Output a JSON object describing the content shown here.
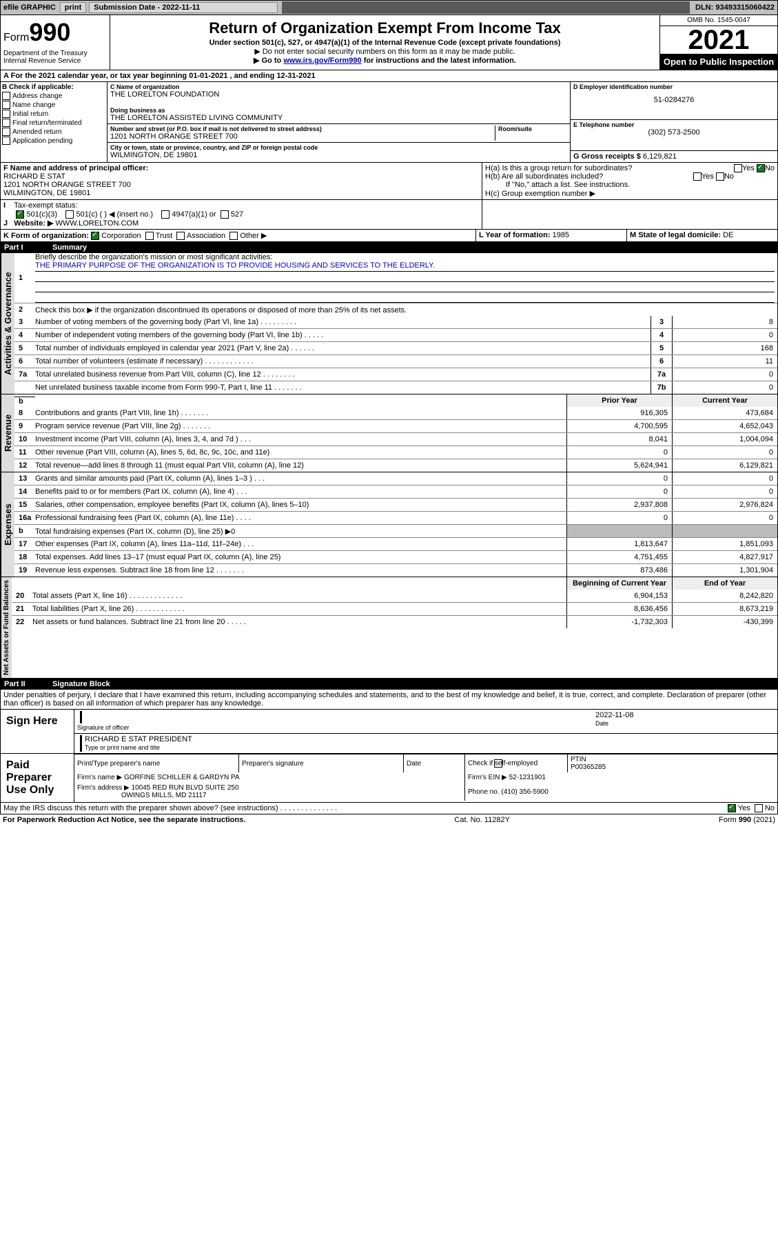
{
  "topbar": {
    "efile": "efile GRAPHIC",
    "print": "print",
    "sub_label": "Submission Date - 2022-11-11",
    "dln": "DLN: 93493315060422"
  },
  "header": {
    "form_prefix": "Form",
    "form_num": "990",
    "title": "Return of Organization Exempt From Income Tax",
    "subtitle": "Under section 501(c), 527, or 4947(a)(1) of the Internal Revenue Code (except private foundations)",
    "note1": "▶ Do not enter social security numbers on this form as it may be made public.",
    "note2_pre": "▶ Go to ",
    "note2_link": "www.irs.gov/Form990",
    "note2_post": " for instructions and the latest information.",
    "dept": "Department of the Treasury\nInternal Revenue Service",
    "omb": "OMB No. 1545-0047",
    "year": "2021",
    "open_public": "Open to Public Inspection"
  },
  "line_a": "For the 2021 calendar year, or tax year beginning 01-01-2021     , and ending 12-31-2021",
  "section_b": {
    "label": "B Check if applicable:",
    "items": [
      "Address change",
      "Name change",
      "Initial return",
      "Final return/terminated",
      "Amended return",
      "Application pending"
    ]
  },
  "section_c": {
    "name_label": "C Name of organization",
    "name": "THE LORELTON FOUNDATION",
    "dba_label": "Doing business as",
    "dba": "THE LORELTON ASSISTED LIVING COMMUNITY",
    "street_label": "Number and street (or P.O. box if mail is not delivered to street address)",
    "room_label": "Room/suite",
    "street": "1201 NORTH ORANGE STREET 700",
    "city_label": "City or town, state or province, country, and ZIP or foreign postal code",
    "city": "WILMINGTON, DE   19801"
  },
  "section_d": {
    "label": "D Employer identification number",
    "val": "51-0284276"
  },
  "section_e": {
    "label": "E Telephone number",
    "val": "(302) 573-2500"
  },
  "section_g": {
    "label": "G Gross receipts $",
    "val": "6,129,821"
  },
  "section_f": {
    "label": "F  Name and address of principal officer:",
    "name": "RICHARD E STAT",
    "addr1": "1201 NORTH ORANGE STREET 700",
    "addr2": "WILMINGTON, DE   19801"
  },
  "section_h": {
    "ha": "H(a)  Is this a group return for subordinates?",
    "hb": "H(b)  Are all subordinates included?",
    "hb_note": "If \"No,\" attach a list. See instructions.",
    "hc": "H(c)  Group exemption number ▶",
    "yes": "Yes",
    "no": "No"
  },
  "line_i": {
    "label": "Tax-exempt status:",
    "opts": [
      "501(c)(3)",
      "501(c) (   ) ◀ (insert no.)",
      "4947(a)(1) or",
      "527"
    ]
  },
  "line_j": {
    "label": "Website: ▶",
    "val": "WWW.LORELTON.COM"
  },
  "line_k": {
    "label": "K Form of organization:",
    "opts": [
      "Corporation",
      "Trust",
      "Association",
      "Other ▶"
    ]
  },
  "line_l": {
    "label": "L Year of formation:",
    "val": "1985"
  },
  "line_m": {
    "label": "M State of legal domicile:",
    "val": "DE"
  },
  "part1": {
    "label": "Part I",
    "title": "Summary"
  },
  "summary": {
    "q1": "Briefly describe the organization's mission or most significant activities:",
    "q1_val": "THE PRIMARY PURPOSE OF THE ORGANIZATION IS TO PROVIDE HOUSING AND SERVICES TO THE ELDERLY.",
    "q2": "Check this box ▶       if the organization discontinued its operations or disposed of more than 25% of its net assets.",
    "lines_gov": [
      {
        "n": "3",
        "t": "Number of voting members of the governing body (Part VI, line 1a)   .    .    .    .    .    .    .    .    .",
        "box": "3",
        "v": "8"
      },
      {
        "n": "4",
        "t": "Number of independent voting members of the governing body (Part VI, line 1b)   .    .    .    .    .",
        "box": "4",
        "v": "0"
      },
      {
        "n": "5",
        "t": "Total number of individuals employed in calendar year 2021 (Part V, line 2a)   .    .    .    .    .    .",
        "box": "5",
        "v": "168"
      },
      {
        "n": "6",
        "t": "Total number of volunteers (estimate if necessary)   .    .    .    .    .    .    .    .    .    .    .    .",
        "box": "6",
        "v": "11"
      },
      {
        "n": "7a",
        "t": "Total unrelated business revenue from Part VIII, column (C), line 12   .    .    .    .    .    .    .    .",
        "box": "7a",
        "v": "0"
      },
      {
        "n": "",
        "t": "Net unrelated business taxable income from Form 990-T, Part I, line 11   .    .    .    .    .    .    .",
        "box": "7b",
        "v": "0"
      }
    ],
    "prior_hdr": "Prior Year",
    "curr_hdr": "Current Year",
    "beg_hdr": "Beginning of Current Year",
    "end_hdr": "End of Year",
    "lines_rev": [
      {
        "n": "8",
        "t": "Contributions and grants (Part VIII, line 1h)   .    .    .    .    .    .    .",
        "p": "916,305",
        "c": "473,684"
      },
      {
        "n": "9",
        "t": "Program service revenue (Part VIII, line 2g)   .    .    .    .    .    .    .",
        "p": "4,700,595",
        "c": "4,652,043"
      },
      {
        "n": "10",
        "t": "Investment income (Part VIII, column (A), lines 3, 4, and 7d )   .    .    .",
        "p": "8,041",
        "c": "1,004,094"
      },
      {
        "n": "11",
        "t": "Other revenue (Part VIII, column (A), lines 5, 6d, 8c, 9c, 10c, and 11e)",
        "p": "0",
        "c": "0"
      },
      {
        "n": "12",
        "t": "Total revenue—add lines 8 through 11 (must equal Part VIII, column (A), line 12)",
        "p": "5,624,941",
        "c": "6,129,821"
      }
    ],
    "lines_exp": [
      {
        "n": "13",
        "t": "Grants and similar amounts paid (Part IX, column (A), lines 1–3 )   .    .    .",
        "p": "0",
        "c": "0"
      },
      {
        "n": "14",
        "t": "Benefits paid to or for members (Part IX, column (A), line 4)   .    .    .",
        "p": "0",
        "c": "0"
      },
      {
        "n": "15",
        "t": "Salaries, other compensation, employee benefits (Part IX, column (A), lines 5–10)",
        "p": "2,937,808",
        "c": "2,976,824"
      },
      {
        "n": "16a",
        "t": "Professional fundraising fees (Part IX, column (A), line 11e)   .    .    .    .",
        "p": "0",
        "c": "0"
      },
      {
        "n": "b",
        "t": "Total fundraising expenses (Part IX, column (D), line 25) ▶0",
        "p": "",
        "c": "",
        "shade": true
      },
      {
        "n": "17",
        "t": "Other expenses (Part IX, column (A), lines 11a–11d, 11f–24e)   .    .    .",
        "p": "1,813,647",
        "c": "1,851,093"
      },
      {
        "n": "18",
        "t": "Total expenses. Add lines 13–17 (must equal Part IX, column (A), line 25)",
        "p": "4,751,455",
        "c": "4,827,917"
      },
      {
        "n": "19",
        "t": "Revenue less expenses. Subtract line 18 from line 12   .    .    .    .    .    .    .",
        "p": "873,486",
        "c": "1,301,904"
      }
    ],
    "lines_net": [
      {
        "n": "20",
        "t": "Total assets (Part X, line 16)   .    .    .    .    .    .    .    .    .    .    .    .    .",
        "p": "6,904,153",
        "c": "8,242,820"
      },
      {
        "n": "21",
        "t": "Total liabilities (Part X, line 26)   .    .    .    .    .    .    .    .    .    .    .    .",
        "p": "8,636,456",
        "c": "8,673,219"
      },
      {
        "n": "22",
        "t": "Net assets or fund balances. Subtract line 21 from line 20   .    .    .    .    .",
        "p": "-1,732,303",
        "c": "-430,399"
      }
    ]
  },
  "vert": {
    "gov": "Activities & Governance",
    "rev": "Revenue",
    "exp": "Expenses",
    "net": "Net Assets or Fund Balances"
  },
  "part2": {
    "label": "Part II",
    "title": "Signature Block"
  },
  "sig": {
    "decl": "Under penalties of perjury, I declare that I have examined this return, including accompanying schedules and statements, and to the best of my knowledge and belief, it is true, correct, and complete. Declaration of preparer (other than officer) is based on all information of which preparer has any knowledge.",
    "sign_here": "Sign Here",
    "sig_officer": "Signature of officer",
    "date": "Date",
    "date_val": "2022-11-08",
    "name_title": "RICHARD E STAT PRESIDENT",
    "type_name": "Type or print name and title",
    "paid_label": "Paid Preparer Use Only",
    "pt_name": "Print/Type preparer's name",
    "prep_sig": "Preparer's signature",
    "check_if": "Check        if self-employed",
    "ptin_label": "PTIN",
    "ptin": "P00365285",
    "firm_name_label": "Firm's name      ▶",
    "firm_name": "GORFINE SCHILLER & GARDYN PA",
    "firm_ein_label": "Firm's EIN ▶",
    "firm_ein": "52-1231901",
    "firm_addr_label": "Firm's address ▶",
    "firm_addr1": "10045 RED RUN BLVD SUITE 250",
    "firm_addr2": "OWINGS MILLS, MD   21117",
    "phone_label": "Phone no.",
    "phone": "(410) 356-5900",
    "discuss": "May the IRS discuss this return with the preparer shown above? (see instructions)   .    .    .    .    .    .    .    .    .    .    .    .    .    ."
  },
  "footer": {
    "left": "For Paperwork Reduction Act Notice, see the separate instructions.",
    "mid": "Cat. No. 11282Y",
    "right": "Form 990 (2021)"
  }
}
